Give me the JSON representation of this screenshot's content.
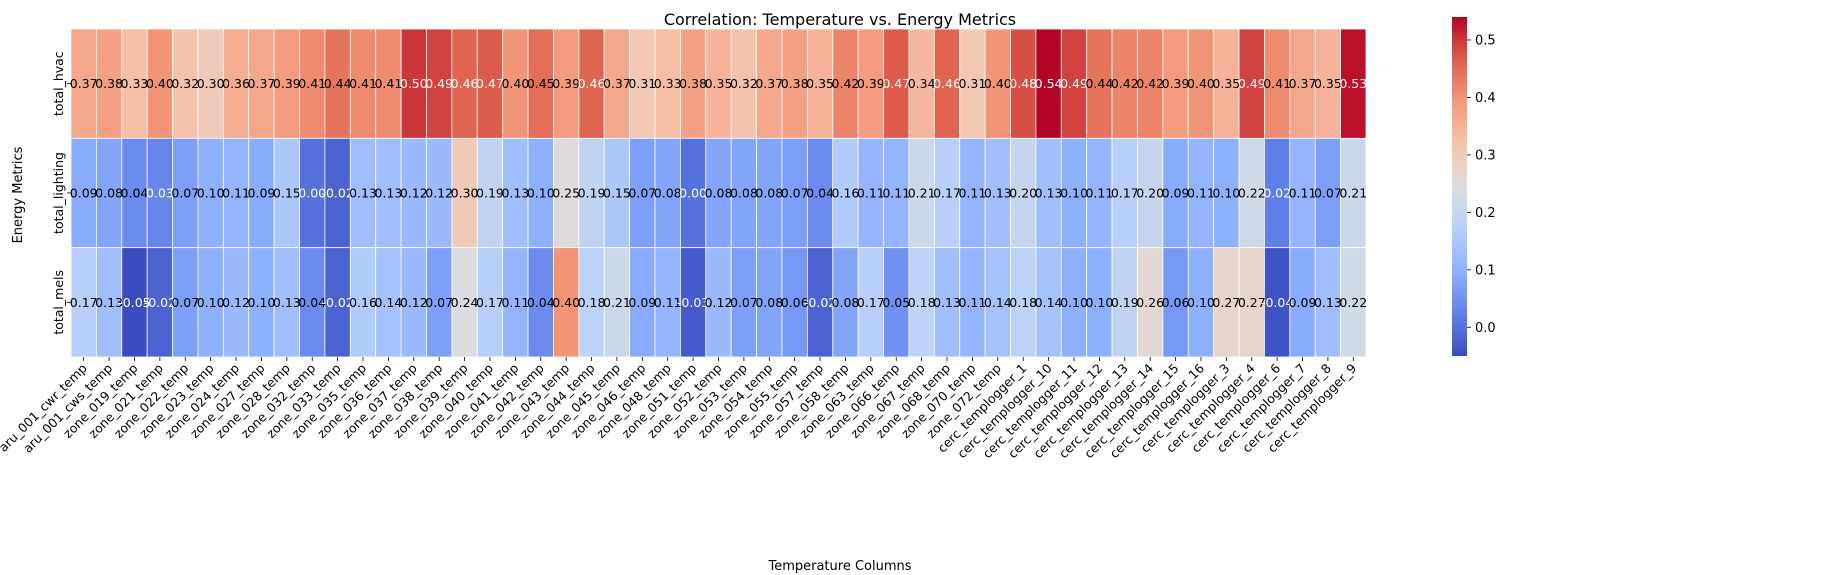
{
  "chart_data": {
    "type": "heatmap",
    "title": "Correlation: Temperature vs. Energy Metrics",
    "xlabel": "Temperature Columns",
    "ylabel": "Energy Metrics",
    "x_categories": [
      "aru_001_cwr_temp",
      "aru_001_cws_temp",
      "zone_019_temp",
      "zone_021_temp",
      "zone_022_temp",
      "zone_023_temp",
      "zone_024_temp",
      "zone_027_temp",
      "zone_028_temp",
      "zone_032_temp",
      "zone_033_temp",
      "zone_035_temp",
      "zone_036_temp",
      "zone_037_temp",
      "zone_038_temp",
      "zone_039_temp",
      "zone_040_temp",
      "zone_041_temp",
      "zone_042_temp",
      "zone_043_temp",
      "zone_044_temp",
      "zone_045_temp",
      "zone_046_temp",
      "zone_048_temp",
      "zone_051_temp",
      "zone_052_temp",
      "zone_053_temp",
      "zone_054_temp",
      "zone_055_temp",
      "zone_057_temp",
      "zone_058_temp",
      "zone_063_temp",
      "zone_066_temp",
      "zone_067_temp",
      "zone_068_temp",
      "zone_070_temp",
      "zone_072_temp",
      "cerc_templogger_1",
      "cerc_templogger_10",
      "cerc_templogger_11",
      "cerc_templogger_12",
      "cerc_templogger_13",
      "cerc_templogger_14",
      "cerc_templogger_15",
      "cerc_templogger_16",
      "cerc_templogger_3",
      "cerc_templogger_4",
      "cerc_templogger_6",
      "cerc_templogger_7",
      "cerc_templogger_8",
      "cerc_templogger_9"
    ],
    "y_categories": [
      "total_hvac",
      "total_lighting",
      "total_mels"
    ],
    "values": [
      [
        0.37,
        0.38,
        0.33,
        0.4,
        0.32,
        0.3,
        0.36,
        0.37,
        0.39,
        0.41,
        0.44,
        0.41,
        0.41,
        0.5,
        0.49,
        0.46,
        0.47,
        0.4,
        0.45,
        0.39,
        0.46,
        0.37,
        0.31,
        0.33,
        0.38,
        0.35,
        0.32,
        0.37,
        0.38,
        0.35,
        0.42,
        0.39,
        0.47,
        0.34,
        0.46,
        0.31,
        0.4,
        0.48,
        0.54,
        0.49,
        0.44,
        0.42,
        0.42,
        0.39,
        0.4,
        0.35,
        0.49,
        0.41,
        0.37,
        0.35,
        0.53
      ],
      [
        0.09,
        0.08,
        0.04,
        0.03,
        0.07,
        0.1,
        0.11,
        0.09,
        0.15,
        0.0,
        -0.02,
        0.13,
        0.13,
        0.12,
        0.12,
        0.3,
        0.19,
        0.13,
        0.1,
        0.25,
        0.19,
        0.15,
        0.07,
        0.08,
        0.0,
        0.08,
        0.08,
        0.08,
        0.07,
        0.04,
        0.16,
        0.11,
        0.11,
        0.21,
        0.17,
        0.11,
        0.13,
        0.2,
        0.13,
        0.1,
        0.11,
        0.17,
        0.2,
        0.09,
        0.11,
        0.1,
        0.22,
        0.02,
        0.11,
        0.07,
        0.21
      ],
      [
        0.17,
        0.13,
        -0.05,
        -0.02,
        0.07,
        0.1,
        0.12,
        0.1,
        0.13,
        0.04,
        -0.02,
        0.16,
        0.14,
        0.12,
        0.07,
        0.24,
        0.17,
        0.11,
        0.04,
        0.4,
        0.18,
        0.21,
        0.09,
        0.11,
        -0.03,
        0.12,
        0.07,
        0.08,
        0.06,
        -0.02,
        0.08,
        0.17,
        0.05,
        0.18,
        0.13,
        0.11,
        0.14,
        0.18,
        0.14,
        0.1,
        0.1,
        0.19,
        0.26,
        0.06,
        0.1,
        0.27,
        0.27,
        -0.04,
        0.09,
        0.13,
        0.22
      ]
    ],
    "colormap": "coolwarm",
    "vmin": -0.05,
    "vmax": 0.54,
    "colorbar_ticks": [
      "0.5",
      "0.4",
      "0.3",
      "0.2",
      "0.1",
      "0.0"
    ],
    "colorbar_tick_values": [
      0.5,
      0.4,
      0.3,
      0.2,
      0.1,
      0.0
    ],
    "value_format": "2dp"
  }
}
